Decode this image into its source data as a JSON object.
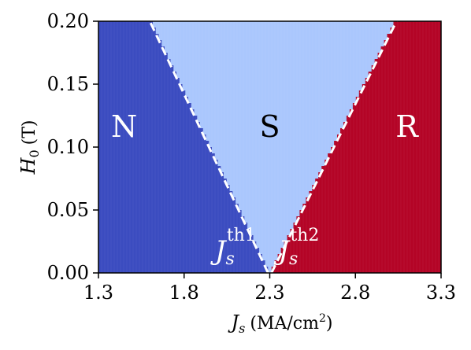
{
  "chart_data": {
    "type": "heatmap",
    "title": "",
    "xlabel": "J_s (MA/cm²)",
    "xlabel_main": "J",
    "xlabel_sub": "s",
    "xlabel_unit": "(MA/cm",
    "xlabel_unit_sup": "2",
    "xlabel_unit_end": ")",
    "ylabel": "H_0 (T)",
    "ylabel_main": "H",
    "ylabel_sub": "0",
    "ylabel_unit": "(T)",
    "xlim": [
      1.3,
      3.3
    ],
    "ylim": [
      0.0,
      0.2
    ],
    "x_ticks": [
      1.3,
      1.8,
      2.3,
      2.8,
      3.3
    ],
    "x_tick_labels": [
      "1.3",
      "1.8",
      "2.3",
      "2.8",
      "3.3"
    ],
    "y_ticks": [
      0.0,
      0.05,
      0.1,
      0.15,
      0.2
    ],
    "y_tick_labels": [
      "0.00",
      "0.05",
      "0.10",
      "0.15",
      "0.20"
    ],
    "grid": false,
    "regions": [
      {
        "label": "N",
        "color": "#3b4cc0",
        "label_color": "#ffffff",
        "label_x": 1.45,
        "label_y": 0.108
      },
      {
        "label": "S",
        "color": "#aac7fd",
        "label_color": "#000000",
        "label_x": 2.3,
        "label_y": 0.108
      },
      {
        "label": "R",
        "color": "#b40426",
        "label_color": "#ffffff",
        "label_x": 3.1,
        "label_y": 0.108
      }
    ],
    "threshold_lines": [
      {
        "name": "J_s^th1",
        "label_main": "J",
        "label_sub": "s",
        "label_sup": "th1",
        "x_at_0": 2.29,
        "x_at_top": 1.6,
        "label_x": 1.98,
        "label_y": 0.008,
        "style": "dashed",
        "color": "#ffffff"
      },
      {
        "name": "J_s^th2",
        "label_main": "J",
        "label_sub": "s",
        "label_sup": "th2",
        "x_at_0": 2.31,
        "x_at_top": 3.04,
        "label_x": 2.35,
        "label_y": 0.008,
        "style": "dashed",
        "color": "#ffffff"
      }
    ]
  }
}
